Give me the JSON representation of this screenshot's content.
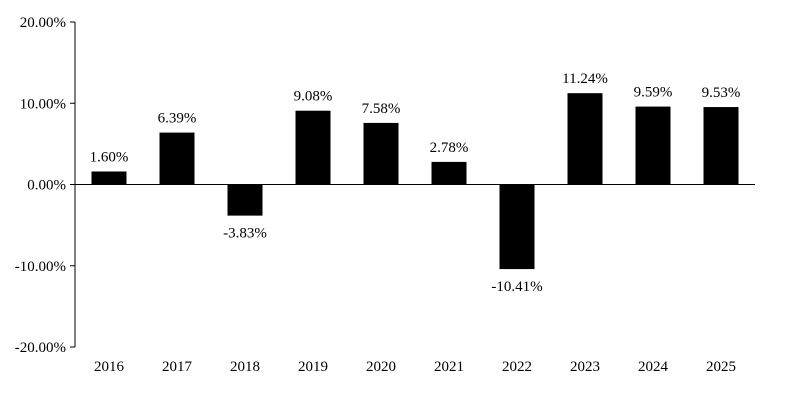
{
  "chart_data": {
    "type": "bar",
    "title": "",
    "xlabel": "",
    "ylabel": "",
    "categories": [
      "2016",
      "2017",
      "2018",
      "2019",
      "2020",
      "2021",
      "2022",
      "2023",
      "2024",
      "2025"
    ],
    "values": [
      1.6,
      6.39,
      -3.83,
      9.08,
      7.58,
      2.78,
      -10.41,
      11.24,
      9.59,
      9.53
    ],
    "value_labels": [
      "1.60%",
      "6.39%",
      "-3.83%",
      "9.08%",
      "7.58%",
      "2.78%",
      "-10.41%",
      "11.24%",
      "9.59%",
      "9.53%"
    ],
    "ylim": [
      -20,
      20
    ],
    "yticks": [
      20,
      10,
      0,
      -10,
      -20
    ],
    "ytick_labels": [
      "20.00%",
      "10.00%",
      "0.00%",
      "-10.00%",
      "-20.00%"
    ],
    "grid": false,
    "legend": "none",
    "bar_color": "#000000"
  }
}
